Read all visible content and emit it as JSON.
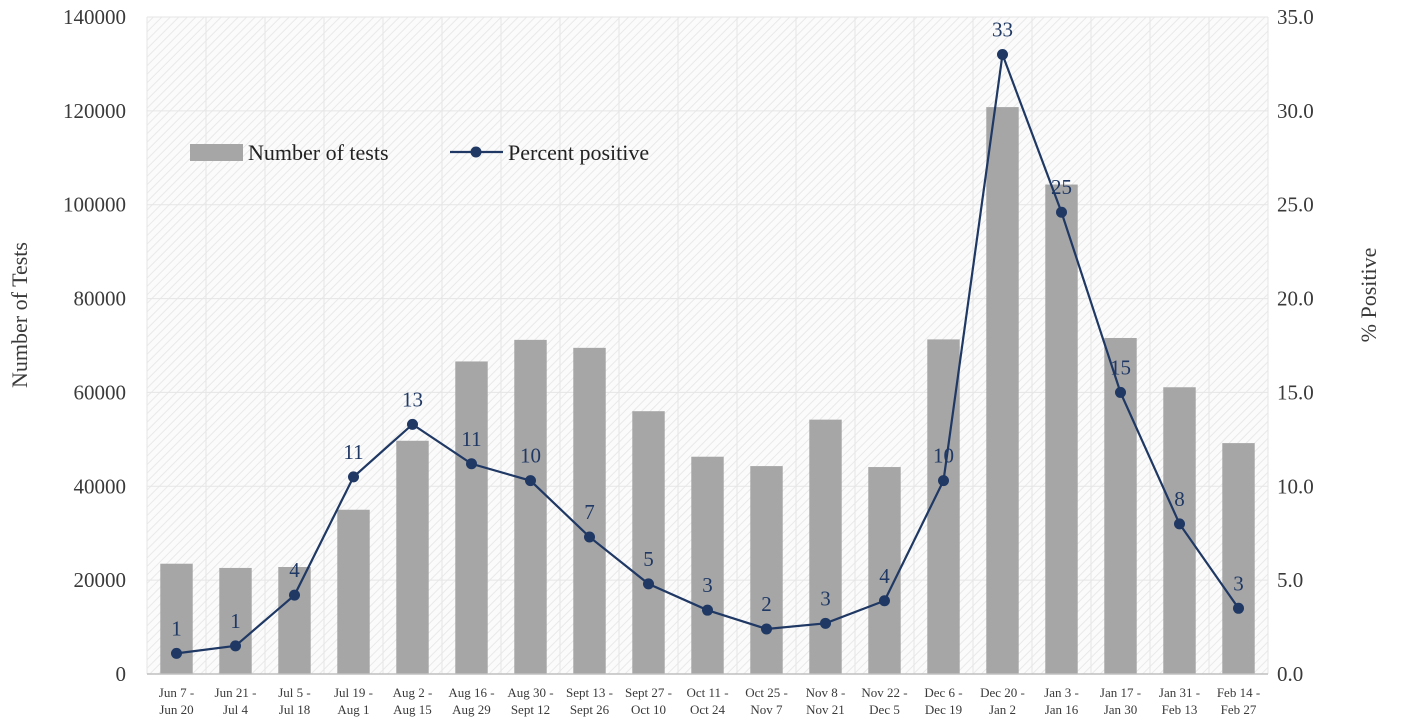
{
  "chart_data": {
    "type": "bar+line",
    "categories": [
      [
        "Jun 7 -",
        "Jun 20"
      ],
      [
        "Jun 21 -",
        "Jul 4"
      ],
      [
        "Jul 5 -",
        "Jul 18"
      ],
      [
        "Jul 19 -",
        "Aug 1"
      ],
      [
        "Aug 2 -",
        "Aug 15"
      ],
      [
        "Aug 16 -",
        "Aug 29"
      ],
      [
        "Aug 30 -",
        "Sept 12"
      ],
      [
        "Sept 13 -",
        "Sept 26"
      ],
      [
        "Sept 27 -",
        "Oct 10"
      ],
      [
        "Oct 11 -",
        "Oct 24"
      ],
      [
        "Oct 25 -",
        "Nov 7"
      ],
      [
        "Nov 8 -",
        "Nov 21"
      ],
      [
        "Nov 22 -",
        "Dec 5"
      ],
      [
        "Dec 6 -",
        "Dec 19"
      ],
      [
        "Dec 20 -",
        "Jan 2"
      ],
      [
        "Jan 3 -",
        "Jan 16"
      ],
      [
        "Jan 17 -",
        "Jan 30"
      ],
      [
        "Jan 31 -",
        "Feb 13"
      ],
      [
        "Feb 14 -",
        "Feb 27"
      ]
    ],
    "series": [
      {
        "name": "Number of tests",
        "type": "bar",
        "axis": "left",
        "color": "#a6a6a6",
        "values": [
          23500,
          22600,
          22800,
          35000,
          49700,
          66600,
          71200,
          69500,
          56000,
          46300,
          44300,
          54200,
          44100,
          71300,
          120800,
          104300,
          71600,
          61100,
          49200
        ]
      },
      {
        "name": "Percent positive",
        "type": "line",
        "axis": "right",
        "color": "#1f3864",
        "values": [
          1.1,
          1.5,
          4.2,
          10.5,
          13.3,
          11.2,
          10.3,
          7.3,
          4.8,
          3.4,
          2.4,
          2.7,
          3.9,
          10.3,
          33.0,
          24.6,
          15.0,
          8.0,
          3.5
        ],
        "labels": [
          "1",
          "1",
          "4",
          "11",
          "13",
          "11",
          "10",
          "7",
          "5",
          "3",
          "2",
          "3",
          "4",
          "10",
          "33",
          "25",
          "15",
          "8",
          "3"
        ]
      }
    ],
    "ylabel": "Number of Tests",
    "y2label": "% Positive",
    "ylim": [
      0,
      140000
    ],
    "y2lim": [
      0,
      35
    ],
    "yticks": [
      "0",
      "20000",
      "40000",
      "60000",
      "80000",
      "100000",
      "120000",
      "140000"
    ],
    "y2ticks": [
      "0.0",
      "5.0",
      "10.0",
      "15.0",
      "20.0",
      "25.0",
      "30.0",
      "35.0"
    ],
    "grid": true,
    "legend": "top-left"
  }
}
